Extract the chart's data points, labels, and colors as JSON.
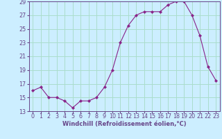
{
  "x": [
    0,
    1,
    2,
    3,
    4,
    5,
    6,
    7,
    8,
    9,
    10,
    11,
    12,
    13,
    14,
    15,
    16,
    17,
    18,
    19,
    20,
    21,
    22,
    23
  ],
  "y": [
    16.0,
    16.5,
    15.0,
    15.0,
    14.5,
    13.5,
    14.5,
    14.5,
    15.0,
    16.5,
    19.0,
    23.0,
    25.5,
    27.0,
    27.5,
    27.5,
    27.5,
    28.5,
    29.0,
    29.0,
    27.0,
    24.0,
    19.5,
    17.5
  ],
  "line_color": "#882288",
  "marker": "D",
  "marker_size": 2.2,
  "bg_color": "#cceeff",
  "grid_color": "#aaddcc",
  "ylim": [
    13,
    29
  ],
  "yticks": [
    13,
    15,
    17,
    19,
    21,
    23,
    25,
    27,
    29
  ],
  "xlim": [
    -0.5,
    23.5
  ],
  "xlabel": "Windchill (Refroidissement éolien,°C)",
  "xlabel_fontsize": 6.0,
  "tick_fontsize": 5.8,
  "spine_color": "#664488"
}
